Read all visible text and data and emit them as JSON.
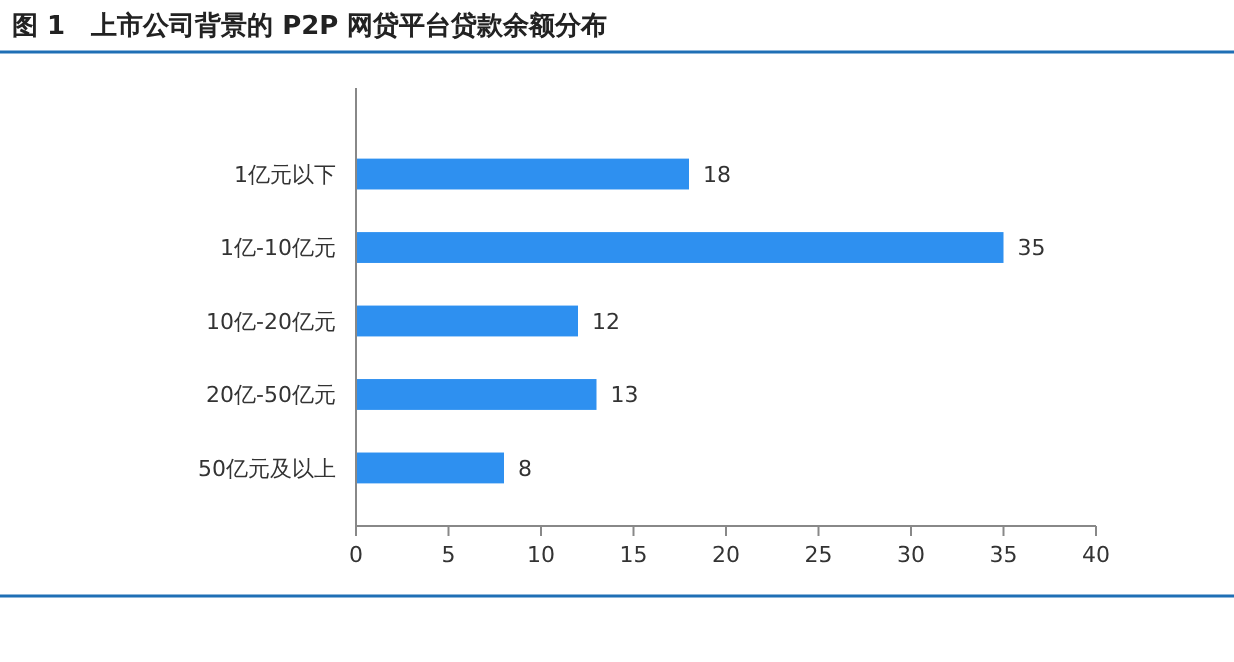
{
  "chart_data": {
    "type": "bar",
    "orientation": "horizontal",
    "title": "图 1　上市公司背景的 P2P 网贷平台贷款余额分布",
    "categories": [
      "1亿元以下",
      "1亿-10亿元",
      "10亿-20亿元",
      "20亿-50亿元",
      "50亿元及以上"
    ],
    "values": [
      18,
      35,
      12,
      13,
      8
    ],
    "color": "#2e90f0",
    "xlim": [
      0,
      40
    ],
    "xticks": [
      0,
      5,
      10,
      15,
      20,
      25,
      30,
      35,
      40
    ],
    "data_labels": true,
    "grid": false
  }
}
